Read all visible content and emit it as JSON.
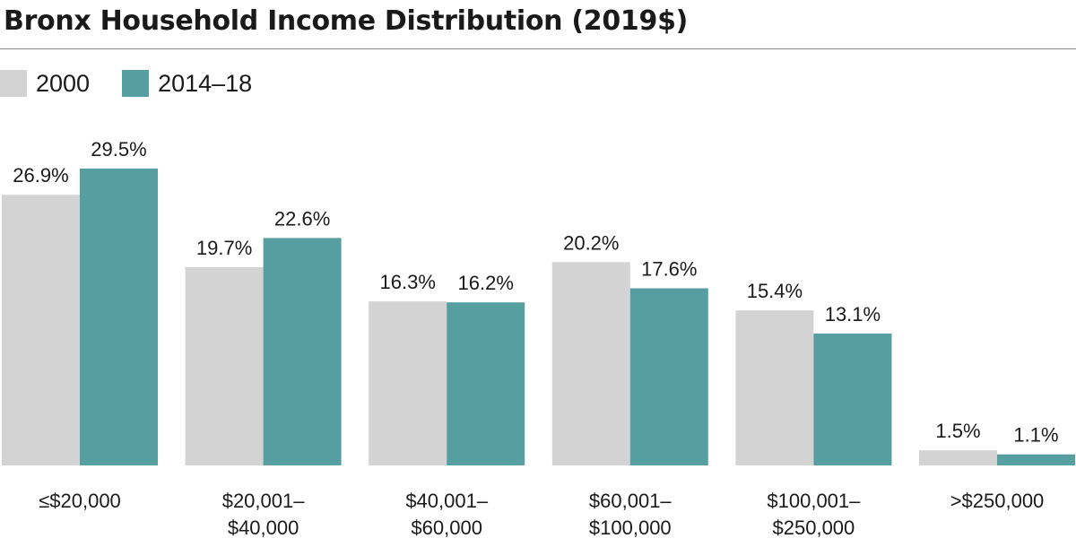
{
  "chart_data": {
    "type": "bar",
    "title": "Bronx Household Income Distribution (2019$)",
    "categories": [
      [
        "≤$20,000"
      ],
      [
        "$20,001–",
        "$40,000"
      ],
      [
        "$40,001–",
        "$60,000"
      ],
      [
        "$60,001–",
        "$100,000"
      ],
      [
        "$100,001–",
        "$250,000"
      ],
      [
        ">$250,000"
      ]
    ],
    "series": [
      {
        "name": "2000",
        "color": "#d3d3d3",
        "values": [
          26.9,
          19.7,
          16.3,
          20.2,
          15.4,
          1.5
        ],
        "labels": [
          "26.9%",
          "19.7%",
          "16.3%",
          "20.2%",
          "15.4%",
          "1.5%"
        ]
      },
      {
        "name": "2014–18",
        "color": "#569ea0",
        "values": [
          29.5,
          22.6,
          16.2,
          17.6,
          13.1,
          1.1
        ],
        "labels": [
          "29.5%",
          "22.6%",
          "16.2%",
          "17.6%",
          "13.1%",
          "1.1%"
        ]
      }
    ],
    "xlabel": "",
    "ylabel": "",
    "ylim": [
      0,
      29.5
    ],
    "grid": false,
    "legend_position": "top-left"
  }
}
